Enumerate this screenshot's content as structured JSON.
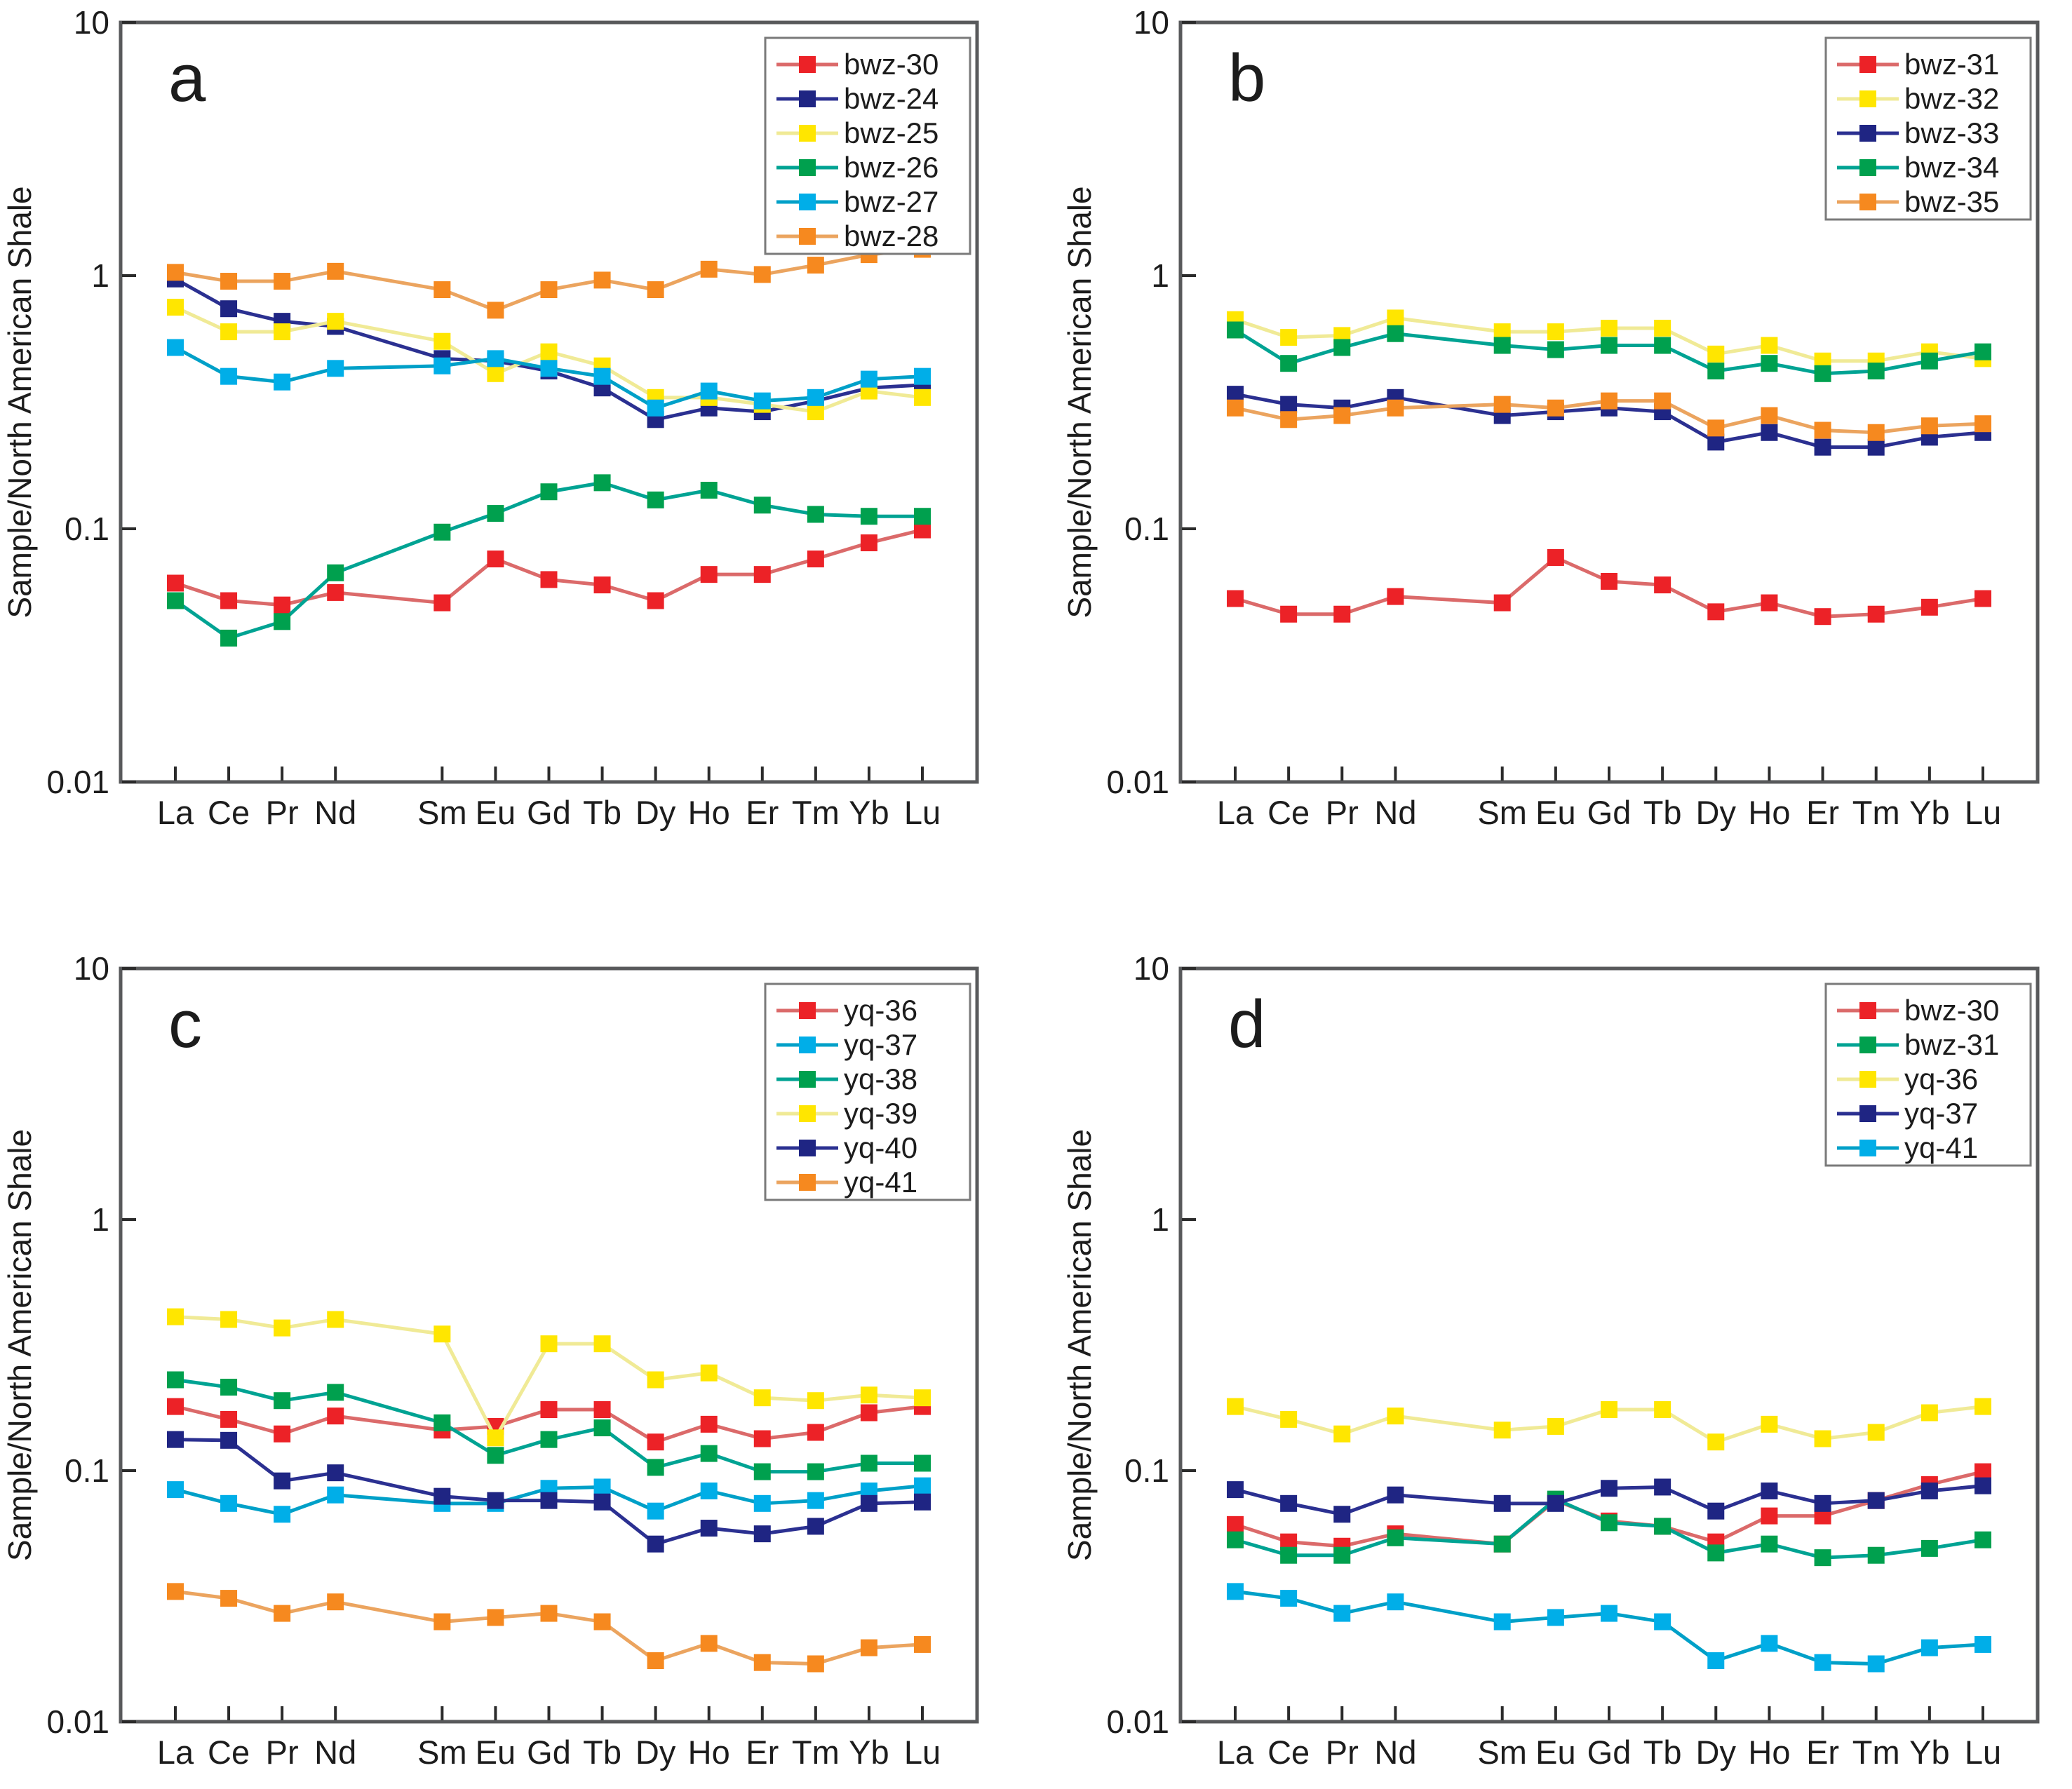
{
  "figure": {
    "ylabel": "Sample/North American Shale",
    "ytick_labels": [
      "10",
      "1",
      "0.1",
      "0.01"
    ],
    "categories": [
      "La",
      "Ce",
      "Pr",
      "Nd",
      "Sm",
      "Eu",
      "Gd",
      "Tb",
      "Dy",
      "Ho",
      "Er",
      "Tm",
      "Yb",
      "Lu"
    ]
  },
  "chart_data": [
    {
      "type": "line",
      "panel_label": "a",
      "yscale": "log",
      "ylim": [
        0.01,
        10
      ],
      "ylabel": "Sample/North American Shale",
      "ytick_labels": [
        "10",
        "1",
        "0.1",
        "0.01"
      ],
      "grid": false,
      "legend_position": "top-right",
      "categories": [
        "La",
        "Ce",
        "Pr",
        "Nd",
        "Sm",
        "Eu",
        "Gd",
        "Tb",
        "Dy",
        "Ho",
        "Er",
        "Tm",
        "Yb",
        "Lu"
      ],
      "series": [
        {
          "name": "bwz-30",
          "marker_color": "#EC2227",
          "line_color": "#DB6A6A",
          "values": [
            0.061,
            0.052,
            0.05,
            0.056,
            0.051,
            0.076,
            0.063,
            0.06,
            0.052,
            0.066,
            0.066,
            0.076,
            0.088,
            0.099
          ]
        },
        {
          "name": "bwz-24",
          "marker_color": "#1F2583",
          "line_color": "#2B3091",
          "values": [
            0.97,
            0.74,
            0.66,
            0.63,
            0.47,
            0.46,
            0.42,
            0.36,
            0.27,
            0.3,
            0.29,
            0.32,
            0.36,
            0.37
          ]
        },
        {
          "name": "bwz-25",
          "marker_color": "#FFE600",
          "line_color": "#F0EA96",
          "values": [
            0.75,
            0.6,
            0.6,
            0.66,
            0.55,
            0.41,
            0.5,
            0.44,
            0.33,
            0.33,
            0.31,
            0.29,
            0.35,
            0.33
          ]
        },
        {
          "name": "bwz-26",
          "marker_color": "#00A04E",
          "line_color": "#00A393",
          "values": [
            0.052,
            0.037,
            0.043,
            0.067,
            0.097,
            0.115,
            0.14,
            0.152,
            0.13,
            0.142,
            0.124,
            0.114,
            0.112,
            0.112
          ]
        },
        {
          "name": "bwz-27",
          "marker_color": "#00AEE8",
          "line_color": "#00A0C8",
          "values": [
            0.52,
            0.4,
            0.38,
            0.43,
            0.44,
            0.47,
            0.43,
            0.4,
            0.3,
            0.35,
            0.32,
            0.33,
            0.39,
            0.4
          ]
        },
        {
          "name": "bwz-28",
          "marker_color": "#F6891F",
          "line_color": "#EBA45F",
          "values": [
            1.03,
            0.95,
            0.95,
            1.04,
            0.88,
            0.73,
            0.88,
            0.96,
            0.88,
            1.06,
            1.01,
            1.1,
            1.21,
            1.27
          ]
        }
      ]
    },
    {
      "type": "line",
      "panel_label": "b",
      "yscale": "log",
      "ylim": [
        0.01,
        10
      ],
      "ylabel": "Sample/North American Shale",
      "ytick_labels": [
        "10",
        "1",
        "0.1",
        "0.01"
      ],
      "grid": false,
      "legend_position": "top-right",
      "categories": [
        "La",
        "Ce",
        "Pr",
        "Nd",
        "Sm",
        "Eu",
        "Gd",
        "Tb",
        "Dy",
        "Ho",
        "Er",
        "Tm",
        "Yb",
        "Lu"
      ],
      "series": [
        {
          "name": "bwz-31",
          "marker_color": "#EC2227",
          "line_color": "#DB6A6A",
          "values": [
            0.053,
            0.046,
            0.046,
            0.054,
            0.051,
            0.077,
            0.062,
            0.06,
            0.047,
            0.051,
            0.045,
            0.046,
            0.049,
            0.053
          ]
        },
        {
          "name": "bwz-32",
          "marker_color": "#FFE600",
          "line_color": "#F0EA96",
          "values": [
            0.67,
            0.57,
            0.58,
            0.68,
            0.6,
            0.6,
            0.62,
            0.62,
            0.49,
            0.53,
            0.46,
            0.46,
            0.5,
            0.47
          ]
        },
        {
          "name": "bwz-33",
          "marker_color": "#1F2583",
          "line_color": "#2B3091",
          "values": [
            0.34,
            0.31,
            0.3,
            0.33,
            0.28,
            0.29,
            0.3,
            0.29,
            0.22,
            0.24,
            0.21,
            0.21,
            0.23,
            0.24
          ]
        },
        {
          "name": "bwz-34",
          "marker_color": "#00A04E",
          "line_color": "#00A393",
          "values": [
            0.61,
            0.45,
            0.52,
            0.59,
            0.53,
            0.51,
            0.53,
            0.53,
            0.42,
            0.45,
            0.41,
            0.42,
            0.46,
            0.5
          ]
        },
        {
          "name": "bwz-35",
          "marker_color": "#F6891F",
          "line_color": "#EBA45F",
          "values": [
            0.3,
            0.27,
            0.28,
            0.3,
            0.31,
            0.3,
            0.32,
            0.32,
            0.25,
            0.28,
            0.245,
            0.24,
            0.255,
            0.26
          ]
        }
      ]
    },
    {
      "type": "line",
      "panel_label": "c",
      "yscale": "log",
      "ylim": [
        0.01,
        10
      ],
      "ylabel": "Sample/North American Shale",
      "ytick_labels": [
        "10",
        "1",
        "0.1",
        "0.01"
      ],
      "grid": false,
      "legend_position": "top-right",
      "categories": [
        "La",
        "Ce",
        "Pr",
        "Nd",
        "Sm",
        "Eu",
        "Gd",
        "Tb",
        "Dy",
        "Ho",
        "Er",
        "Tm",
        "Yb",
        "Lu"
      ],
      "series": [
        {
          "name": "yq-36",
          "marker_color": "#EC2227",
          "line_color": "#DB6A6A",
          "values": [
            0.18,
            0.16,
            0.14,
            0.165,
            0.145,
            0.15,
            0.175,
            0.175,
            0.13,
            0.153,
            0.134,
            0.142,
            0.17,
            0.18
          ]
        },
        {
          "name": "yq-37",
          "marker_color": "#00AEE8",
          "line_color": "#00A0C8",
          "values": [
            0.084,
            0.074,
            0.067,
            0.08,
            0.074,
            0.074,
            0.085,
            0.086,
            0.069,
            0.083,
            0.074,
            0.076,
            0.083,
            0.087
          ]
        },
        {
          "name": "yq-38",
          "marker_color": "#00A04E",
          "line_color": "#00A393",
          "values": [
            0.23,
            0.215,
            0.19,
            0.205,
            0.155,
            0.115,
            0.133,
            0.148,
            0.103,
            0.117,
            0.099,
            0.099,
            0.107,
            0.107
          ]
        },
        {
          "name": "yq-39",
          "marker_color": "#FFE600",
          "line_color": "#F0EA96",
          "values": [
            0.41,
            0.4,
            0.37,
            0.4,
            0.35,
            0.135,
            0.32,
            0.32,
            0.23,
            0.245,
            0.195,
            0.19,
            0.2,
            0.195
          ]
        },
        {
          "name": "yq-40",
          "marker_color": "#1F2583",
          "line_color": "#2B3091",
          "values": [
            0.133,
            0.132,
            0.091,
            0.098,
            0.079,
            0.076,
            0.076,
            0.075,
            0.051,
            0.059,
            0.056,
            0.06,
            0.074,
            0.075
          ]
        },
        {
          "name": "yq-41",
          "marker_color": "#F6891F",
          "line_color": "#EBA45F",
          "values": [
            0.033,
            0.031,
            0.027,
            0.03,
            0.025,
            0.026,
            0.027,
            0.025,
            0.0175,
            0.0205,
            0.0172,
            0.017,
            0.0197,
            0.0203
          ]
        }
      ]
    },
    {
      "type": "line",
      "panel_label": "d",
      "yscale": "log",
      "ylim": [
        0.01,
        10
      ],
      "ylabel": "Sample/North American Shale",
      "ytick_labels": [
        "10",
        "1",
        "0.1",
        "0.01"
      ],
      "grid": false,
      "legend_position": "top-right",
      "categories": [
        "La",
        "Ce",
        "Pr",
        "Nd",
        "Sm",
        "Eu",
        "Gd",
        "Tb",
        "Dy",
        "Ho",
        "Er",
        "Tm",
        "Yb",
        "Lu"
      ],
      "series": [
        {
          "name": "bwz-30",
          "marker_color": "#EC2227",
          "line_color": "#DB6A6A",
          "values": [
            0.061,
            0.052,
            0.05,
            0.056,
            0.051,
            0.076,
            0.063,
            0.06,
            0.052,
            0.066,
            0.066,
            0.076,
            0.088,
            0.099
          ]
        },
        {
          "name": "bwz-31",
          "marker_color": "#00A04E",
          "line_color": "#00A393",
          "values": [
            0.053,
            0.046,
            0.046,
            0.054,
            0.051,
            0.077,
            0.062,
            0.06,
            0.047,
            0.051,
            0.045,
            0.046,
            0.049,
            0.053
          ]
        },
        {
          "name": "yq-36",
          "marker_color": "#FFE600",
          "line_color": "#F0EA96",
          "values": [
            0.18,
            0.16,
            0.14,
            0.165,
            0.145,
            0.15,
            0.175,
            0.175,
            0.13,
            0.153,
            0.134,
            0.142,
            0.17,
            0.18
          ]
        },
        {
          "name": "yq-37",
          "marker_color": "#1F2583",
          "line_color": "#2B3091",
          "values": [
            0.084,
            0.074,
            0.067,
            0.08,
            0.074,
            0.074,
            0.085,
            0.086,
            0.069,
            0.083,
            0.074,
            0.076,
            0.083,
            0.087
          ]
        },
        {
          "name": "yq-41",
          "marker_color": "#00AEE8",
          "line_color": "#00A0C8",
          "values": [
            0.033,
            0.031,
            0.027,
            0.03,
            0.025,
            0.026,
            0.027,
            0.025,
            0.0175,
            0.0205,
            0.0172,
            0.017,
            0.0197,
            0.0203
          ]
        }
      ]
    }
  ],
  "style": {
    "frame_color": "#58595B",
    "tick_color": "#2b2b2b",
    "legend_border_color": "#7a7a7a",
    "text_color": "#1c1c1c"
  }
}
